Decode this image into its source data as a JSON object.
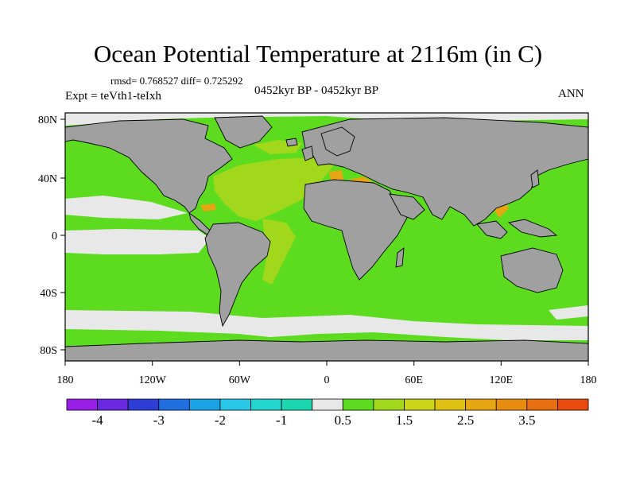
{
  "title": "Ocean Potential Temperature at 2116m (in C)",
  "stats": "rmsd= 0.768527 diff= 0.725292",
  "period": "0452kyr BP - 0452kyr BP",
  "expt": "Expt = teVth1-teIxh",
  "season": "ANN",
  "lat_ticks": [
    "80N",
    "40N",
    "0",
    "40S",
    "80S"
  ],
  "lon_ticks": [
    "180",
    "120W",
    "60W",
    "0",
    "60E",
    "120E",
    "180"
  ],
  "colorbar": {
    "labels": [
      "-4",
      "-3",
      "-2",
      "-1",
      "0.5",
      "1.5",
      "2.5",
      "3.5"
    ],
    "colors": [
      "#9a1fe6",
      "#6a28e0",
      "#2d3ed6",
      "#1f6fe0",
      "#1aa3e6",
      "#2ac8e8",
      "#22d6cf",
      "#1ad7b0",
      "#e8e8e8",
      "#5ddc1f",
      "#a2d81c",
      "#cdd51a",
      "#e0c215",
      "#e6a612",
      "#e88c10",
      "#e87010",
      "#e84a10"
    ]
  },
  "colors": {
    "land": "#a0a0a0",
    "ocean_main": "#5ddc1f",
    "ocean_cool": "#e8e8e8",
    "ocean_warm1": "#a2d81c",
    "ocean_warm2": "#e6a612",
    "ocean_cyan": "#22c8e8"
  }
}
